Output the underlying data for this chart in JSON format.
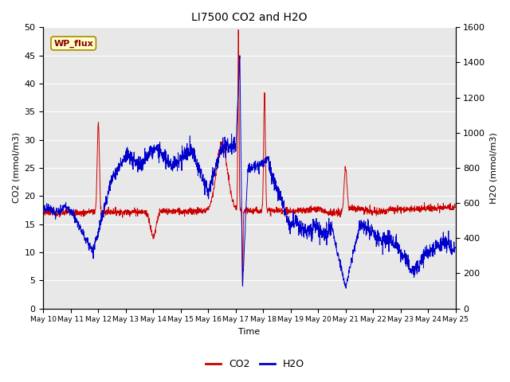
{
  "title": "LI7500 CO2 and H2O",
  "xlabel": "Time",
  "ylabel_left": "CO2 (mmol/m3)",
  "ylabel_right": "H2O (mmol/m3)",
  "annotation": "WP_flux",
  "ylim_left": [
    0,
    50
  ],
  "ylim_right": [
    0,
    1600
  ],
  "yticks_left": [
    0,
    5,
    10,
    15,
    20,
    25,
    30,
    35,
    40,
    45,
    50
  ],
  "yticks_right": [
    0,
    200,
    400,
    600,
    800,
    1000,
    1200,
    1400,
    1600
  ],
  "x_labels": [
    "May 10",
    "May 11",
    "May 12",
    "May 13",
    "May 14",
    "May 15",
    "May 16",
    "May 17",
    "May 18",
    "May 19",
    "May 20",
    "May 21",
    "May 22",
    "May 23",
    "May 24",
    "May 25"
  ],
  "co2_color": "#cc0000",
  "h2o_color": "#0000cc",
  "plot_bg_color": "#e8e8e8",
  "grid_color": "#ffffff",
  "annotation_bg": "#ffffcc",
  "annotation_border": "#aa8800"
}
